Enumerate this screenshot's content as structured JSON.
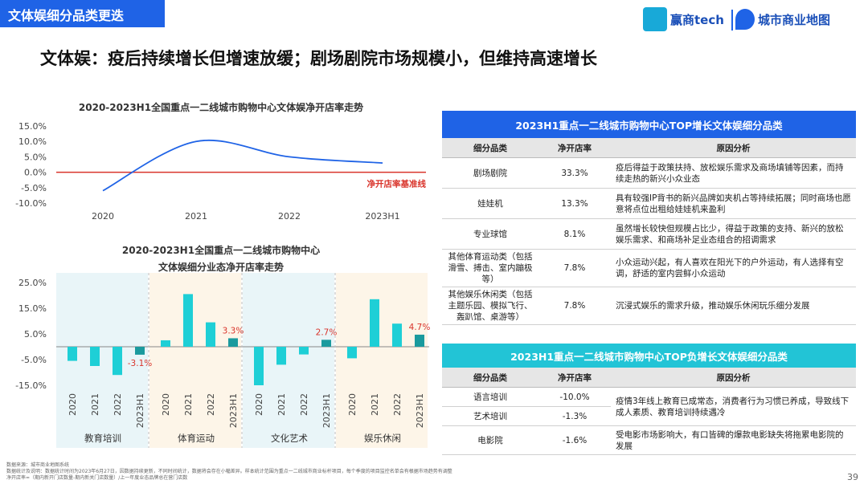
{
  "header": {
    "tag": "文体娱细分品类更迭",
    "logo1_text": "赢商tech",
    "logo2_text": "城市商业地图",
    "headline": "文体娱：疫后持续增长但增速放缓；剧场剧院市场规模小，但维持高速增长"
  },
  "chart_data": [
    {
      "type": "line",
      "title": "2020-2023H1全国重点一二线城市购物中心文体娱净开店率走势",
      "x": [
        "2020",
        "2021",
        "2022",
        "2023H1"
      ],
      "series": [
        {
          "values": [
            -6.0,
            10.0,
            5.0,
            3.0
          ]
        }
      ],
      "yticks": [
        "15.0%",
        "10.0%",
        "5.0%",
        "0.0%",
        "-5.0%",
        "-10.0%"
      ],
      "ylim": [
        -10,
        15
      ],
      "reference_line": {
        "value": 0,
        "label": "净开店率基准线",
        "color": "#d9342b"
      },
      "line_color": "#1f63e6"
    },
    {
      "type": "bar",
      "title_line1": "2020-2023H1全国重点一二线城市购物中心",
      "title_line2": "文体娱细分业态净开店率走势",
      "yticks": [
        "25.0%",
        "15.0%",
        "5.0%",
        "-5.0%",
        "-15.0%"
      ],
      "ylim": [
        -15,
        25
      ],
      "groups": [
        {
          "name": "教育培训",
          "bg": "#e9f5f8",
          "categories": [
            "2020",
            "2021",
            "2022",
            "2023H1"
          ],
          "values": [
            -5.5,
            -7.5,
            -11.0,
            -3.1
          ],
          "last_label": "-3.1%"
        },
        {
          "name": "体育运动",
          "bg": "#fdf5e8",
          "categories": [
            "2020",
            "2021",
            "2022",
            "2023H1"
          ],
          "values": [
            2.5,
            20.5,
            9.5,
            3.3
          ],
          "last_label": "3.3%"
        },
        {
          "name": "文化艺术",
          "bg": "#e9f5f8",
          "categories": [
            "2020",
            "2021",
            "2022",
            "2023H1"
          ],
          "values": [
            -15.0,
            -7.0,
            -3.0,
            2.7
          ],
          "last_label": "2.7%"
        },
        {
          "name": "娱乐休闲",
          "bg": "#fdf5e8",
          "categories": [
            "2020",
            "2021",
            "2022",
            "2023H1"
          ],
          "values": [
            -4.5,
            18.5,
            9.0,
            4.7
          ],
          "last_label": "4.7%"
        }
      ],
      "bar_color": "#1ecfd6",
      "last_bar_color": "#1a9a9e",
      "label_color": "#d9342b"
    }
  ],
  "table_top": {
    "title": "2023H1重点一二线城市购物中心TOP增长文体娱细分品类",
    "head_color": "#1f63e6",
    "columns": [
      "细分品类",
      "净开店率",
      "原因分析"
    ],
    "rows": [
      [
        "剧场剧院",
        "33.3%",
        "疫后得益于政策扶持、放松娱乐需求及商场填铺等因素，而持续走热的新兴小众业态"
      ],
      [
        "娃娃机",
        "13.3%",
        "具有较强IP背书的新兴品牌如夹机占等持续拓展；同时商场也愿意将点位出租给娃娃机来盈利"
      ],
      [
        "专业球馆",
        "8.1%",
        "虽然增长较快但规模占比少，得益于政策的支持、新兴的放松娱乐需求、和商场补足业态组合的招调需求"
      ],
      [
        "其他体育运动类（包括滑雪、搏击、室内蹦极等）",
        "7.8%",
        "小众运动兴起，有人喜欢在阳光下的户外运动，有人选择有空调，舒适的室内尝鲜小众运动"
      ],
      [
        "其他娱乐休闲类（包括主题乐园、模拟飞行、轰趴馆、桌游等）",
        "7.8%",
        "沉浸式娱乐的需求升级，推动娱乐休闲玩乐细分发展"
      ]
    ]
  },
  "table_bottom": {
    "title": "2023H1重点一二线城市购物中心TOP负增长文体娱细分品类",
    "head_color": "#22c4d6",
    "columns": [
      "细分品类",
      "净开店率",
      "原因分析"
    ],
    "rows": [
      [
        "语言培训",
        "-10.0%"
      ],
      [
        "艺术培训",
        "-1.3%"
      ],
      [
        "电影院",
        "-1.6%"
      ]
    ],
    "reason_merged": "疫情3年线上教育已成常态，消费者行为习惯已养成，导致线下成人素质、教育培训持续遇冷",
    "reason_cinema": "受电影市场影响大，有口皆碑的爆款电影缺失将拖累电影院的发展"
  },
  "footnote": {
    "line1": "数据来源：城市商业地图系统",
    "line2": "数据统计及说明：数据统计时间为2023年6月27日，因数据持续更新，不同时间统计，数据将会存在小幅差异。样本统计范围为重点一二线城市商业标杆项目，每个季度的项目监控名单会有根据市场趋势有调整",
    "line3": "净开店率=（期内新开门店数量-期内新关门店数量）/上一年度业态品牌总在营门店数"
  },
  "page_number": "39"
}
